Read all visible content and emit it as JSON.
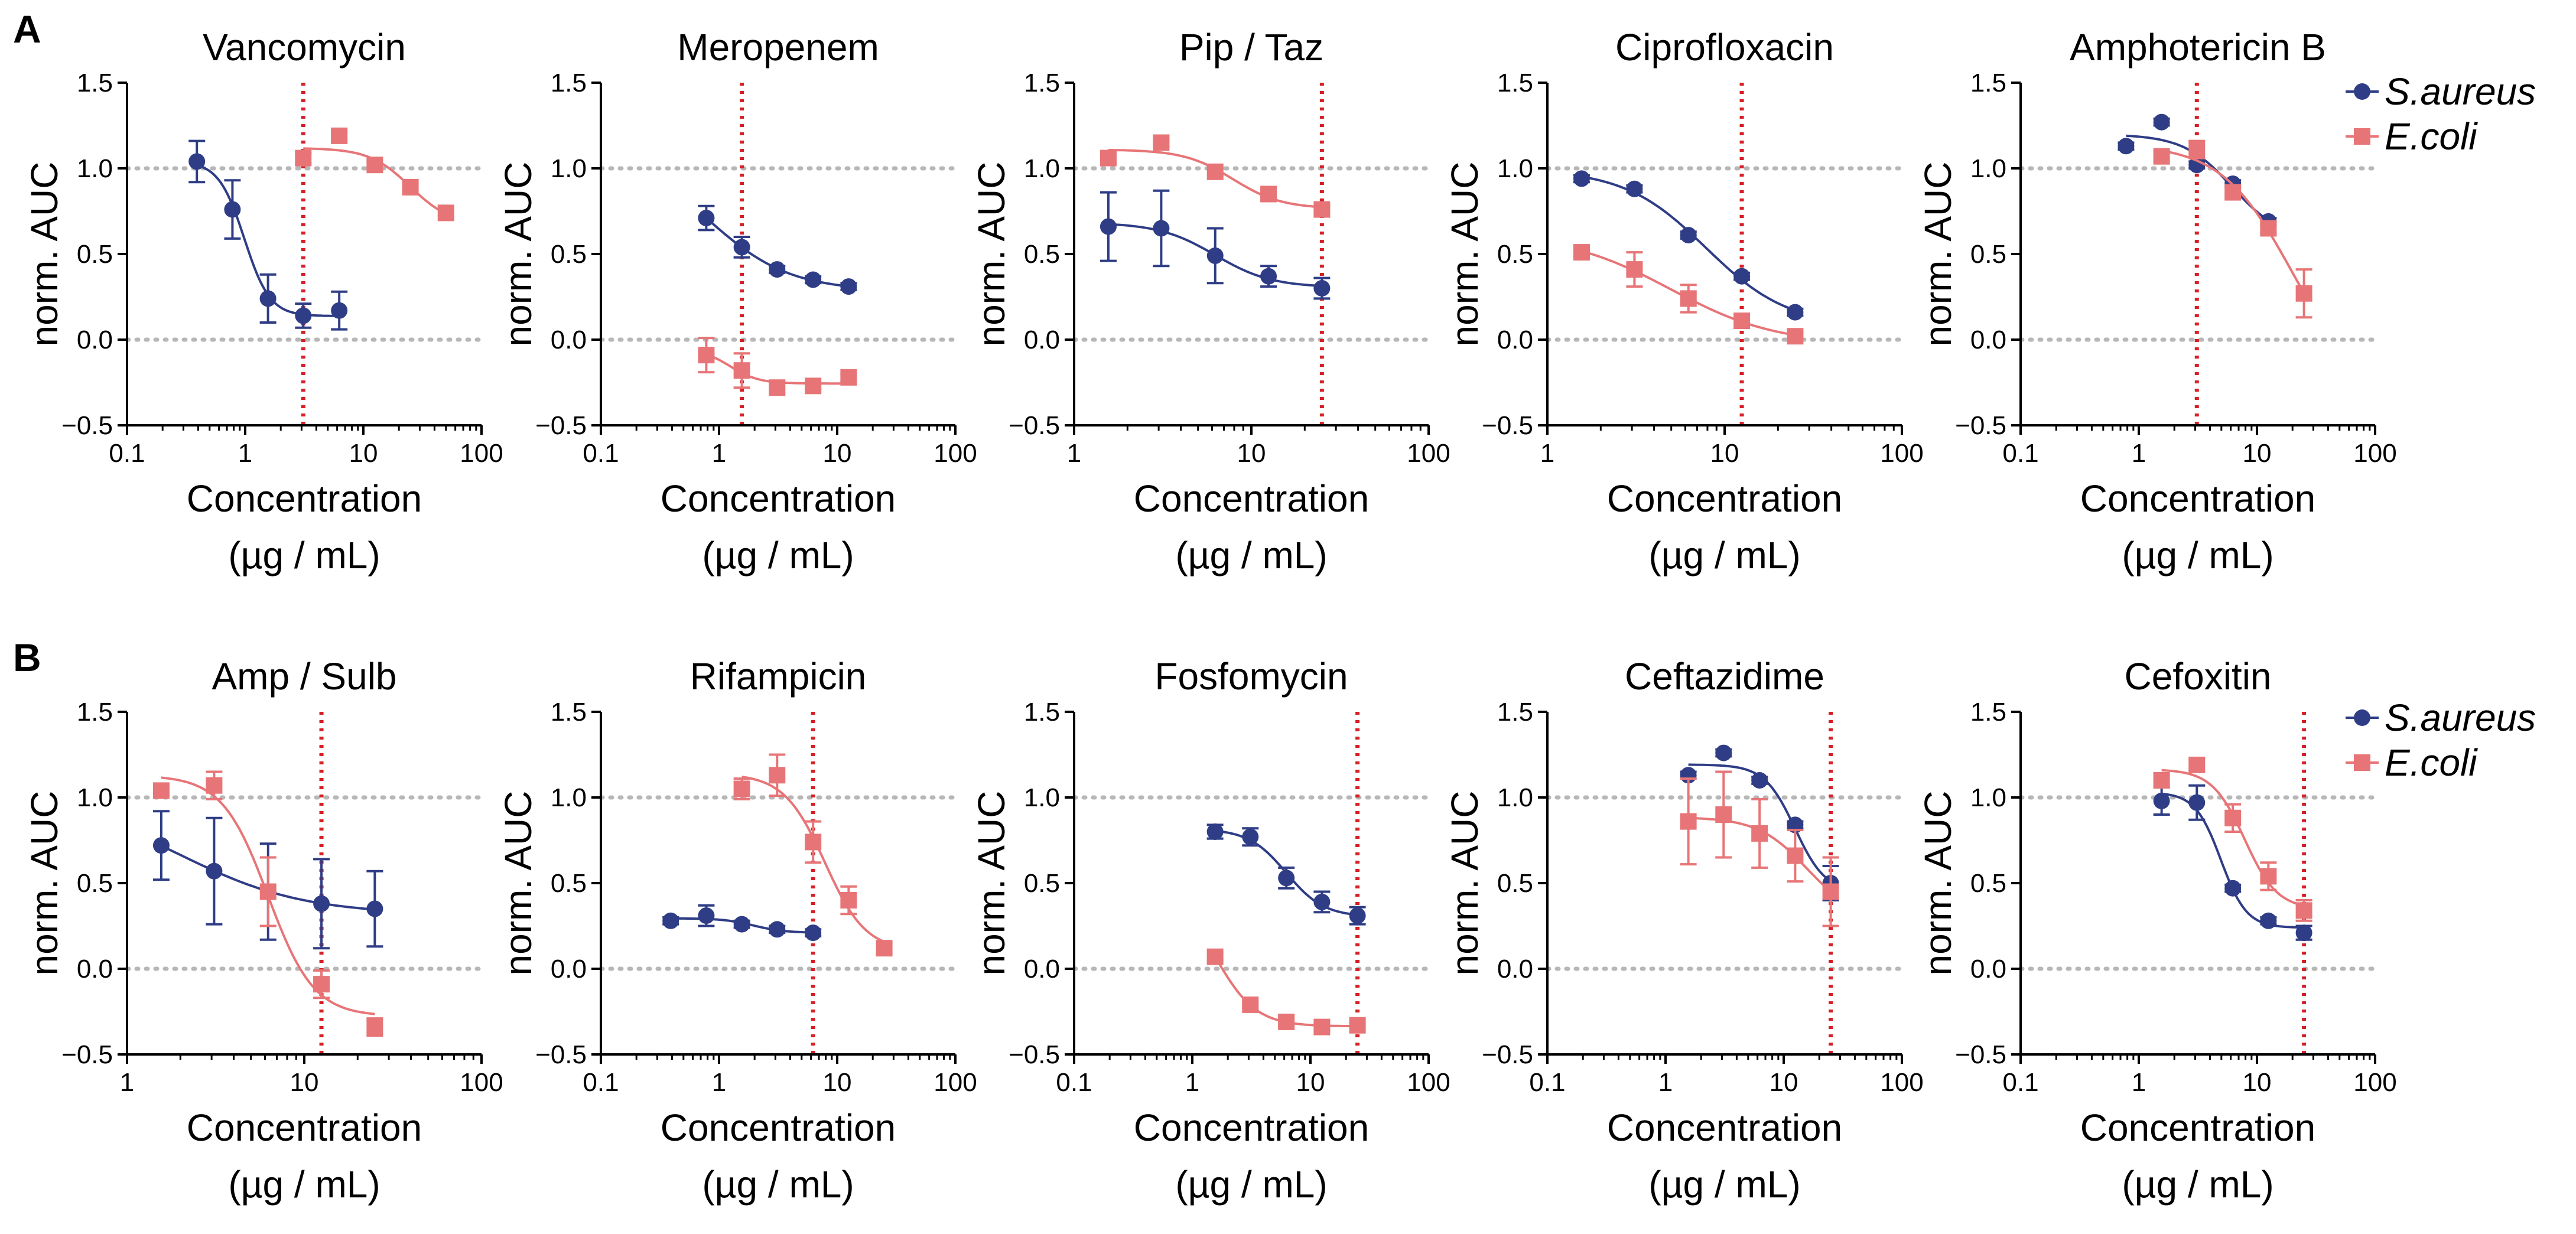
{
  "panel_labels": [
    "A",
    "B"
  ],
  "colors": {
    "saureus": "#2f3d86",
    "ecoli": "#e77577",
    "axis": "#000000",
    "guide": "#b7b7b7",
    "mic": "#d61f26"
  },
  "legend": {
    "labels": [
      "S.aureus",
      "E.coli"
    ]
  },
  "chart_data": [
    {
      "type": "scatter",
      "title": "Vancomycin",
      "ylabel": "norm. AUC",
      "xlabel": "Concentration",
      "xlabel2": "(µg / mL)",
      "xscale": "log",
      "xlim": [
        0.1,
        100
      ],
      "ylim": [
        -0.5,
        1.5
      ],
      "xticks": [
        "0.1",
        "1",
        "10",
        "100"
      ],
      "yticks": [
        "−0.5",
        "0.0",
        "0.5",
        "1.0",
        "1.5"
      ],
      "mic": 3.1,
      "series": [
        {
          "name": "S.aureus",
          "x": [
            0.39,
            0.78,
            1.56,
            3.1,
            6.25
          ],
          "y": [
            1.04,
            0.76,
            0.24,
            0.14,
            0.17
          ],
          "err": [
            0.12,
            0.17,
            0.14,
            0.07,
            0.11
          ]
        },
        {
          "name": "E.coli",
          "x": [
            3.1,
            6.25,
            12.5,
            25,
            50
          ],
          "y": [
            1.06,
            1.19,
            1.02,
            0.89,
            0.74
          ],
          "err": [
            0.03,
            0.02,
            0.02,
            0.02,
            0.02
          ]
        }
      ]
    },
    {
      "type": "scatter",
      "title": "Meropenem",
      "ylabel": "norm. AUC",
      "xlabel": "Concentration",
      "xlabel2": "(µg / mL)",
      "xscale": "log",
      "xlim": [
        0.1,
        100
      ],
      "ylim": [
        -0.5,
        1.5
      ],
      "xticks": [
        "0.1",
        "1",
        "10",
        "100"
      ],
      "yticks": [
        "−0.5",
        "0.0",
        "0.5",
        "1.0",
        "1.5"
      ],
      "mic": 1.56,
      "series": [
        {
          "name": "S.aureus",
          "x": [
            0.78,
            1.56,
            3.1,
            6.25,
            12.5
          ],
          "y": [
            0.71,
            0.54,
            0.41,
            0.35,
            0.31
          ],
          "err": [
            0.07,
            0.06,
            0.02,
            0.02,
            0.02
          ]
        },
        {
          "name": "E.coli",
          "x": [
            0.78,
            1.56,
            3.1,
            6.25,
            12.5
          ],
          "y": [
            -0.09,
            -0.18,
            -0.28,
            -0.27,
            -0.22
          ],
          "err": [
            0.1,
            0.1,
            0.03,
            0.02,
            0.02
          ]
        }
      ]
    },
    {
      "type": "scatter",
      "title": "Pip / Taz",
      "ylabel": "norm. AUC",
      "xlabel": "Concentration",
      "xlabel2": "(µg / mL)",
      "xscale": "log",
      "xlim": [
        1,
        100
      ],
      "ylim": [
        -0.5,
        1.5
      ],
      "xticks": [
        "1",
        "10",
        "100"
      ],
      "yticks": [
        "−0.5",
        "0.0",
        "0.5",
        "1.0",
        "1.5"
      ],
      "mic": 25,
      "series": [
        {
          "name": "S.aureus",
          "x": [
            1.56,
            3.1,
            6.25,
            12.5,
            25
          ],
          "y": [
            0.66,
            0.65,
            0.49,
            0.37,
            0.3
          ],
          "err": [
            0.2,
            0.22,
            0.16,
            0.06,
            0.06
          ]
        },
        {
          "name": "E.coli",
          "x": [
            1.56,
            3.1,
            6.25,
            12.5,
            25
          ],
          "y": [
            1.06,
            1.15,
            0.98,
            0.85,
            0.76
          ],
          "err": [
            0.03,
            0.02,
            0.02,
            0.02,
            0.02
          ]
        }
      ]
    },
    {
      "type": "scatter",
      "title": "Ciprofloxacin",
      "ylabel": "norm. AUC",
      "xlabel": "Concentration",
      "xlabel2": "(µg / mL)",
      "xscale": "log",
      "xlim": [
        1,
        100
      ],
      "ylim": [
        -0.5,
        1.5
      ],
      "xticks": [
        "1",
        "10",
        "100"
      ],
      "yticks": [
        "−0.5",
        "0.0",
        "0.5",
        "1.0",
        "1.5"
      ],
      "mic": 12.5,
      "series": [
        {
          "name": "S.aureus",
          "x": [
            1.56,
            3.1,
            6.25,
            12.5,
            25
          ],
          "y": [
            0.94,
            0.88,
            0.61,
            0.37,
            0.16
          ],
          "err": [
            0.02,
            0.02,
            0.02,
            0.02,
            0.02
          ]
        },
        {
          "name": "E.coli",
          "x": [
            1.56,
            3.1,
            6.25,
            12.5,
            25
          ],
          "y": [
            0.51,
            0.41,
            0.24,
            0.11,
            0.02
          ],
          "err": [
            0.03,
            0.1,
            0.08,
            0.04,
            0.02
          ]
        }
      ]
    },
    {
      "type": "scatter",
      "title": "Amphotericin B",
      "ylabel": "norm. AUC",
      "xlabel": "Concentration",
      "xlabel2": "(µg / mL)",
      "xscale": "log",
      "xlim": [
        0.1,
        100
      ],
      "ylim": [
        -0.5,
        1.5
      ],
      "xticks": [
        "0.1",
        "1",
        "10",
        "100"
      ],
      "yticks": [
        "−0.5",
        "0.0",
        "0.5",
        "1.0",
        "1.5"
      ],
      "mic": 3.1,
      "series": [
        {
          "name": "S.aureus",
          "x": [
            0.78,
            1.56,
            3.1,
            6.25,
            12.5
          ],
          "y": [
            1.13,
            1.27,
            1.02,
            0.91,
            0.69
          ],
          "err": [
            0.02,
            0.02,
            0.02,
            0.02,
            0.02
          ]
        },
        {
          "name": "E.coli",
          "x": [
            1.56,
            3.1,
            6.25,
            12.5,
            25
          ],
          "y": [
            1.07,
            1.11,
            0.86,
            0.65,
            0.27
          ],
          "err": [
            0.03,
            0.05,
            0.03,
            0.03,
            0.14
          ]
        }
      ]
    },
    {
      "type": "scatter",
      "title": "Amp / Sulb",
      "ylabel": "norm. AUC",
      "xlabel": "Concentration",
      "xlabel2": "(µg / mL)",
      "xscale": "log",
      "xlim": [
        1,
        100
      ],
      "ylim": [
        -0.5,
        1.5
      ],
      "xticks": [
        "1",
        "10",
        "100"
      ],
      "yticks": [
        "−0.5",
        "0.0",
        "0.5",
        "1.0",
        "1.5"
      ],
      "mic": 12.5,
      "series": [
        {
          "name": "S.aureus",
          "x": [
            1.56,
            3.1,
            6.25,
            12.5,
            25
          ],
          "y": [
            0.72,
            0.57,
            0.45,
            0.38,
            0.35
          ],
          "err": [
            0.2,
            0.31,
            0.28,
            0.26,
            0.22
          ]
        },
        {
          "name": "E.coli",
          "x": [
            1.56,
            3.1,
            6.25,
            12.5,
            25
          ],
          "y": [
            1.04,
            1.07,
            0.45,
            -0.09,
            -0.34
          ],
          "err": [
            0.02,
            0.08,
            0.2,
            0.08,
            0.05
          ]
        }
      ]
    },
    {
      "type": "scatter",
      "title": "Rifampicin",
      "ylabel": "norm. AUC",
      "xlabel": "Concentration",
      "xlabel2": "(µg / mL)",
      "xscale": "log",
      "xlim": [
        0.1,
        100
      ],
      "ylim": [
        -0.5,
        1.5
      ],
      "xticks": [
        "0.1",
        "1",
        "10",
        "100"
      ],
      "yticks": [
        "−0.5",
        "0.0",
        "0.5",
        "1.0",
        "1.5"
      ],
      "mic": 6.25,
      "series": [
        {
          "name": "S.aureus",
          "x": [
            0.39,
            0.78,
            1.56,
            3.1,
            6.25
          ],
          "y": [
            0.28,
            0.31,
            0.26,
            0.23,
            0.21
          ],
          "err": [
            0.02,
            0.06,
            0.02,
            0.02,
            0.02
          ]
        },
        {
          "name": "E.coli",
          "x": [
            1.56,
            3.1,
            6.25,
            12.5,
            25
          ],
          "y": [
            1.05,
            1.13,
            0.74,
            0.4,
            0.12
          ],
          "err": [
            0.06,
            0.12,
            0.12,
            0.08,
            0.03
          ]
        }
      ]
    },
    {
      "type": "scatter",
      "title": "Fosfomycin",
      "ylabel": "norm. AUC",
      "xlabel": "Concentration",
      "xlabel2": "(µg / mL)",
      "xscale": "log",
      "xlim": [
        0.1,
        100
      ],
      "ylim": [
        -0.5,
        1.5
      ],
      "xticks": [
        "0.1",
        "1",
        "10",
        "100"
      ],
      "yticks": [
        "−0.5",
        "0.0",
        "0.5",
        "1.0",
        "1.5"
      ],
      "mic": 25,
      "series": [
        {
          "name": "S.aureus",
          "x": [
            1.56,
            3.1,
            6.25,
            12.5,
            25
          ],
          "y": [
            0.8,
            0.77,
            0.53,
            0.39,
            0.31
          ],
          "err": [
            0.04,
            0.05,
            0.06,
            0.06,
            0.05
          ]
        },
        {
          "name": "E.coli",
          "x": [
            1.56,
            3.1,
            6.25,
            12.5,
            25
          ],
          "y": [
            0.07,
            -0.21,
            -0.31,
            -0.34,
            -0.33
          ],
          "err": [
            0.02,
            0.02,
            0.02,
            0.02,
            0.02
          ]
        }
      ]
    },
    {
      "type": "scatter",
      "title": "Ceftazidime",
      "ylabel": "norm. AUC",
      "xlabel": "Concentration",
      "xlabel2": "(µg / mL)",
      "xscale": "log",
      "xlim": [
        0.1,
        100
      ],
      "ylim": [
        -0.5,
        1.5
      ],
      "xticks": [
        "0.1",
        "1",
        "10",
        "100"
      ],
      "yticks": [
        "−0.5",
        "0.0",
        "0.5",
        "1.0",
        "1.5"
      ],
      "mic": 25,
      "series": [
        {
          "name": "S.aureus",
          "x": [
            1.56,
            3.1,
            6.25,
            12.5,
            25
          ],
          "y": [
            1.13,
            1.26,
            1.1,
            0.84,
            0.5
          ],
          "err": [
            0.02,
            0.02,
            0.02,
            0.02,
            0.1
          ]
        },
        {
          "name": "E.coli",
          "x": [
            1.56,
            3.1,
            6.25,
            12.5,
            25
          ],
          "y": [
            0.86,
            0.9,
            0.79,
            0.66,
            0.45
          ],
          "err": [
            0.25,
            0.25,
            0.2,
            0.15,
            0.2
          ]
        }
      ]
    },
    {
      "type": "scatter",
      "title": "Cefoxitin",
      "ylabel": "norm. AUC",
      "xlabel": "Concentration",
      "xlabel2": "(µg / mL)",
      "xscale": "log",
      "xlim": [
        0.1,
        100
      ],
      "ylim": [
        -0.5,
        1.5
      ],
      "xticks": [
        "0.1",
        "1",
        "10",
        "100"
      ],
      "yticks": [
        "−0.5",
        "0.0",
        "0.5",
        "1.0",
        "1.5"
      ],
      "mic": 25,
      "series": [
        {
          "name": "S.aureus",
          "x": [
            1.56,
            3.1,
            6.25,
            12.5,
            25
          ],
          "y": [
            0.98,
            0.97,
            0.47,
            0.28,
            0.21
          ],
          "err": [
            0.08,
            0.1,
            0.02,
            0.02,
            0.04
          ]
        },
        {
          "name": "E.coli",
          "x": [
            1.56,
            3.1,
            6.25,
            12.5,
            25
          ],
          "y": [
            1.1,
            1.19,
            0.88,
            0.54,
            0.34
          ],
          "err": [
            0.04,
            0.03,
            0.08,
            0.08,
            0.06
          ]
        }
      ]
    }
  ]
}
